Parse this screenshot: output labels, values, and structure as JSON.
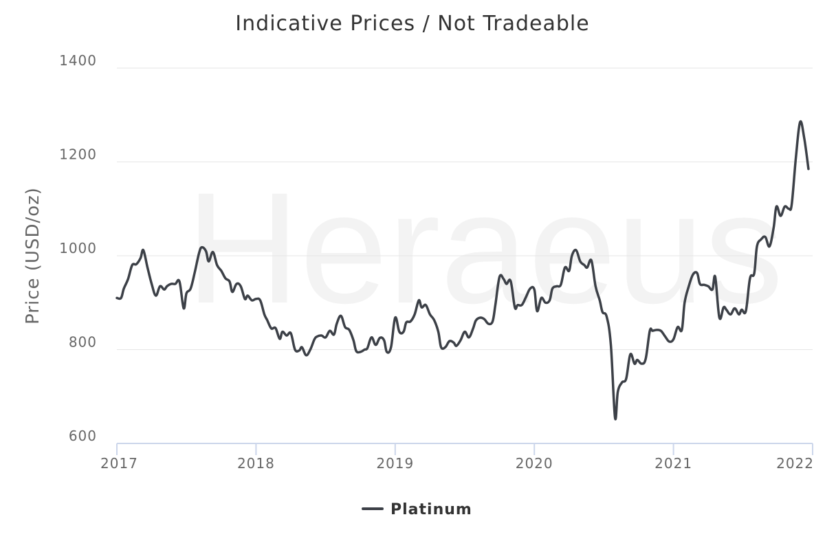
{
  "chart_data": {
    "type": "line",
    "title": "Indicative Prices / Not Tradeable",
    "ylabel": "Price (USD/oz)",
    "xlabel": "",
    "watermark": "Heraeus",
    "ylim": [
      600,
      1400
    ],
    "xlim": [
      2017.0,
      2022.0
    ],
    "yticks": [
      600,
      800,
      1000,
      1200,
      1400
    ],
    "xticks": [
      2017,
      2018,
      2019,
      2020,
      2021,
      2022
    ],
    "xtick_labels": [
      "2017",
      "2018",
      "2019",
      "2020",
      "2021",
      "2022"
    ],
    "grid": true,
    "legend": "bottom-center",
    "series": [
      {
        "name": "Platinum",
        "color": "#3c4047",
        "points": [
          [
            2017.0,
            910
          ],
          [
            2017.03,
            910
          ],
          [
            2017.05,
            930
          ],
          [
            2017.08,
            950
          ],
          [
            2017.11,
            980
          ],
          [
            2017.14,
            982
          ],
          [
            2017.17,
            995
          ],
          [
            2017.19,
            1012
          ],
          [
            2017.22,
            975
          ],
          [
            2017.25,
            940
          ],
          [
            2017.28,
            915
          ],
          [
            2017.31,
            935
          ],
          [
            2017.34,
            928
          ],
          [
            2017.36,
            935
          ],
          [
            2017.39,
            940
          ],
          [
            2017.42,
            940
          ],
          [
            2017.45,
            945
          ],
          [
            2017.48,
            888
          ],
          [
            2017.5,
            920
          ],
          [
            2017.53,
            930
          ],
          [
            2017.56,
            965
          ],
          [
            2017.59,
            1005
          ],
          [
            2017.61,
            1018
          ],
          [
            2017.64,
            1010
          ],
          [
            2017.66,
            988
          ],
          [
            2017.69,
            1008
          ],
          [
            2017.72,
            980
          ],
          [
            2017.75,
            968
          ],
          [
            2017.78,
            952
          ],
          [
            2017.81,
            945
          ],
          [
            2017.83,
            923
          ],
          [
            2017.86,
            940
          ],
          [
            2017.89,
            935
          ],
          [
            2017.92,
            908
          ],
          [
            2017.94,
            915
          ],
          [
            2017.97,
            905
          ],
          [
            2018.0,
            908
          ],
          [
            2018.03,
            905
          ],
          [
            2018.06,
            875
          ],
          [
            2018.08,
            863
          ],
          [
            2018.11,
            845
          ],
          [
            2018.14,
            846
          ],
          [
            2018.17,
            823
          ],
          [
            2018.19,
            838
          ],
          [
            2018.22,
            830
          ],
          [
            2018.25,
            835
          ],
          [
            2018.28,
            800
          ],
          [
            2018.31,
            798
          ],
          [
            2018.33,
            805
          ],
          [
            2018.36,
            788
          ],
          [
            2018.39,
            800
          ],
          [
            2018.42,
            822
          ],
          [
            2018.44,
            828
          ],
          [
            2018.47,
            830
          ],
          [
            2018.5,
            826
          ],
          [
            2018.53,
            840
          ],
          [
            2018.56,
            832
          ],
          [
            2018.58,
            855
          ],
          [
            2018.61,
            872
          ],
          [
            2018.64,
            848
          ],
          [
            2018.67,
            842
          ],
          [
            2018.7,
            820
          ],
          [
            2018.72,
            797
          ],
          [
            2018.75,
            795
          ],
          [
            2018.78,
            800
          ],
          [
            2018.8,
            803
          ],
          [
            2018.83,
            826
          ],
          [
            2018.86,
            810
          ],
          [
            2018.89,
            825
          ],
          [
            2018.92,
            820
          ],
          [
            2018.94,
            795
          ],
          [
            2018.97,
            805
          ],
          [
            2019.0,
            868
          ],
          [
            2019.03,
            838
          ],
          [
            2019.06,
            838
          ],
          [
            2019.08,
            858
          ],
          [
            2019.11,
            860
          ],
          [
            2019.14,
            875
          ],
          [
            2019.17,
            905
          ],
          [
            2019.19,
            890
          ],
          [
            2019.22,
            895
          ],
          [
            2019.25,
            875
          ],
          [
            2019.28,
            863
          ],
          [
            2019.31,
            838
          ],
          [
            2019.33,
            805
          ],
          [
            2019.36,
            805
          ],
          [
            2019.39,
            818
          ],
          [
            2019.42,
            815
          ],
          [
            2019.44,
            808
          ],
          [
            2019.47,
            820
          ],
          [
            2019.5,
            838
          ],
          [
            2019.53,
            826
          ],
          [
            2019.56,
            845
          ],
          [
            2019.58,
            862
          ],
          [
            2019.61,
            868
          ],
          [
            2019.64,
            865
          ],
          [
            2019.67,
            855
          ],
          [
            2019.7,
            860
          ],
          [
            2019.72,
            895
          ],
          [
            2019.75,
            955
          ],
          [
            2019.78,
            950
          ],
          [
            2019.8,
            940
          ],
          [
            2019.83,
            946
          ],
          [
            2019.86,
            890
          ],
          [
            2019.88,
            895
          ],
          [
            2019.91,
            895
          ],
          [
            2019.94,
            912
          ],
          [
            2019.97,
            930
          ],
          [
            2020.0,
            928
          ],
          [
            2020.02,
            882
          ],
          [
            2020.05,
            910
          ],
          [
            2020.08,
            900
          ],
          [
            2020.11,
            905
          ],
          [
            2020.13,
            930
          ],
          [
            2020.16,
            935
          ],
          [
            2020.19,
            938
          ],
          [
            2020.22,
            975
          ],
          [
            2020.25,
            968
          ],
          [
            2020.27,
            1000
          ],
          [
            2020.3,
            1012
          ],
          [
            2020.33,
            988
          ],
          [
            2020.36,
            980
          ],
          [
            2020.38,
            975
          ],
          [
            2020.41,
            990
          ],
          [
            2020.44,
            935
          ],
          [
            2020.47,
            905
          ],
          [
            2020.49,
            880
          ],
          [
            2020.52,
            870
          ],
          [
            2020.55,
            810
          ],
          [
            2020.58,
            655
          ],
          [
            2020.6,
            710
          ],
          [
            2020.63,
            730
          ],
          [
            2020.66,
            738
          ],
          [
            2020.69,
            790
          ],
          [
            2020.72,
            770
          ],
          [
            2020.74,
            778
          ],
          [
            2020.77,
            770
          ],
          [
            2020.8,
            780
          ],
          [
            2020.83,
            840
          ],
          [
            2020.85,
            840
          ],
          [
            2020.88,
            842
          ],
          [
            2020.91,
            840
          ],
          [
            2020.94,
            828
          ],
          [
            2020.97,
            817
          ],
          [
            2021.0,
            822
          ],
          [
            2021.03,
            848
          ],
          [
            2021.06,
            842
          ],
          [
            2021.08,
            900
          ],
          [
            2021.11,
            935
          ],
          [
            2021.14,
            960
          ],
          [
            2021.17,
            963
          ],
          [
            2021.19,
            940
          ],
          [
            2021.22,
            938
          ],
          [
            2021.25,
            935
          ],
          [
            2021.28,
            928
          ],
          [
            2021.3,
            955
          ],
          [
            2021.33,
            868
          ],
          [
            2021.36,
            890
          ],
          [
            2021.38,
            885
          ],
          [
            2021.41,
            875
          ],
          [
            2021.44,
            888
          ],
          [
            2021.47,
            875
          ],
          [
            2021.49,
            885
          ],
          [
            2021.52,
            882
          ],
          [
            2021.55,
            952
          ],
          [
            2021.58,
            962
          ],
          [
            2021.6,
            1020
          ],
          [
            2021.63,
            1035
          ],
          [
            2021.66,
            1040
          ],
          [
            2021.69,
            1020
          ],
          [
            2021.72,
            1060
          ],
          [
            2021.74,
            1105
          ],
          [
            2021.77,
            1085
          ],
          [
            2021.8,
            1105
          ],
          [
            2021.83,
            1100
          ],
          [
            2021.85,
            1110
          ],
          [
            2021.88,
            1210
          ],
          [
            2021.91,
            1285
          ],
          [
            2021.94,
            1250
          ],
          [
            2021.97,
            1185
          ]
        ]
      }
    ]
  }
}
